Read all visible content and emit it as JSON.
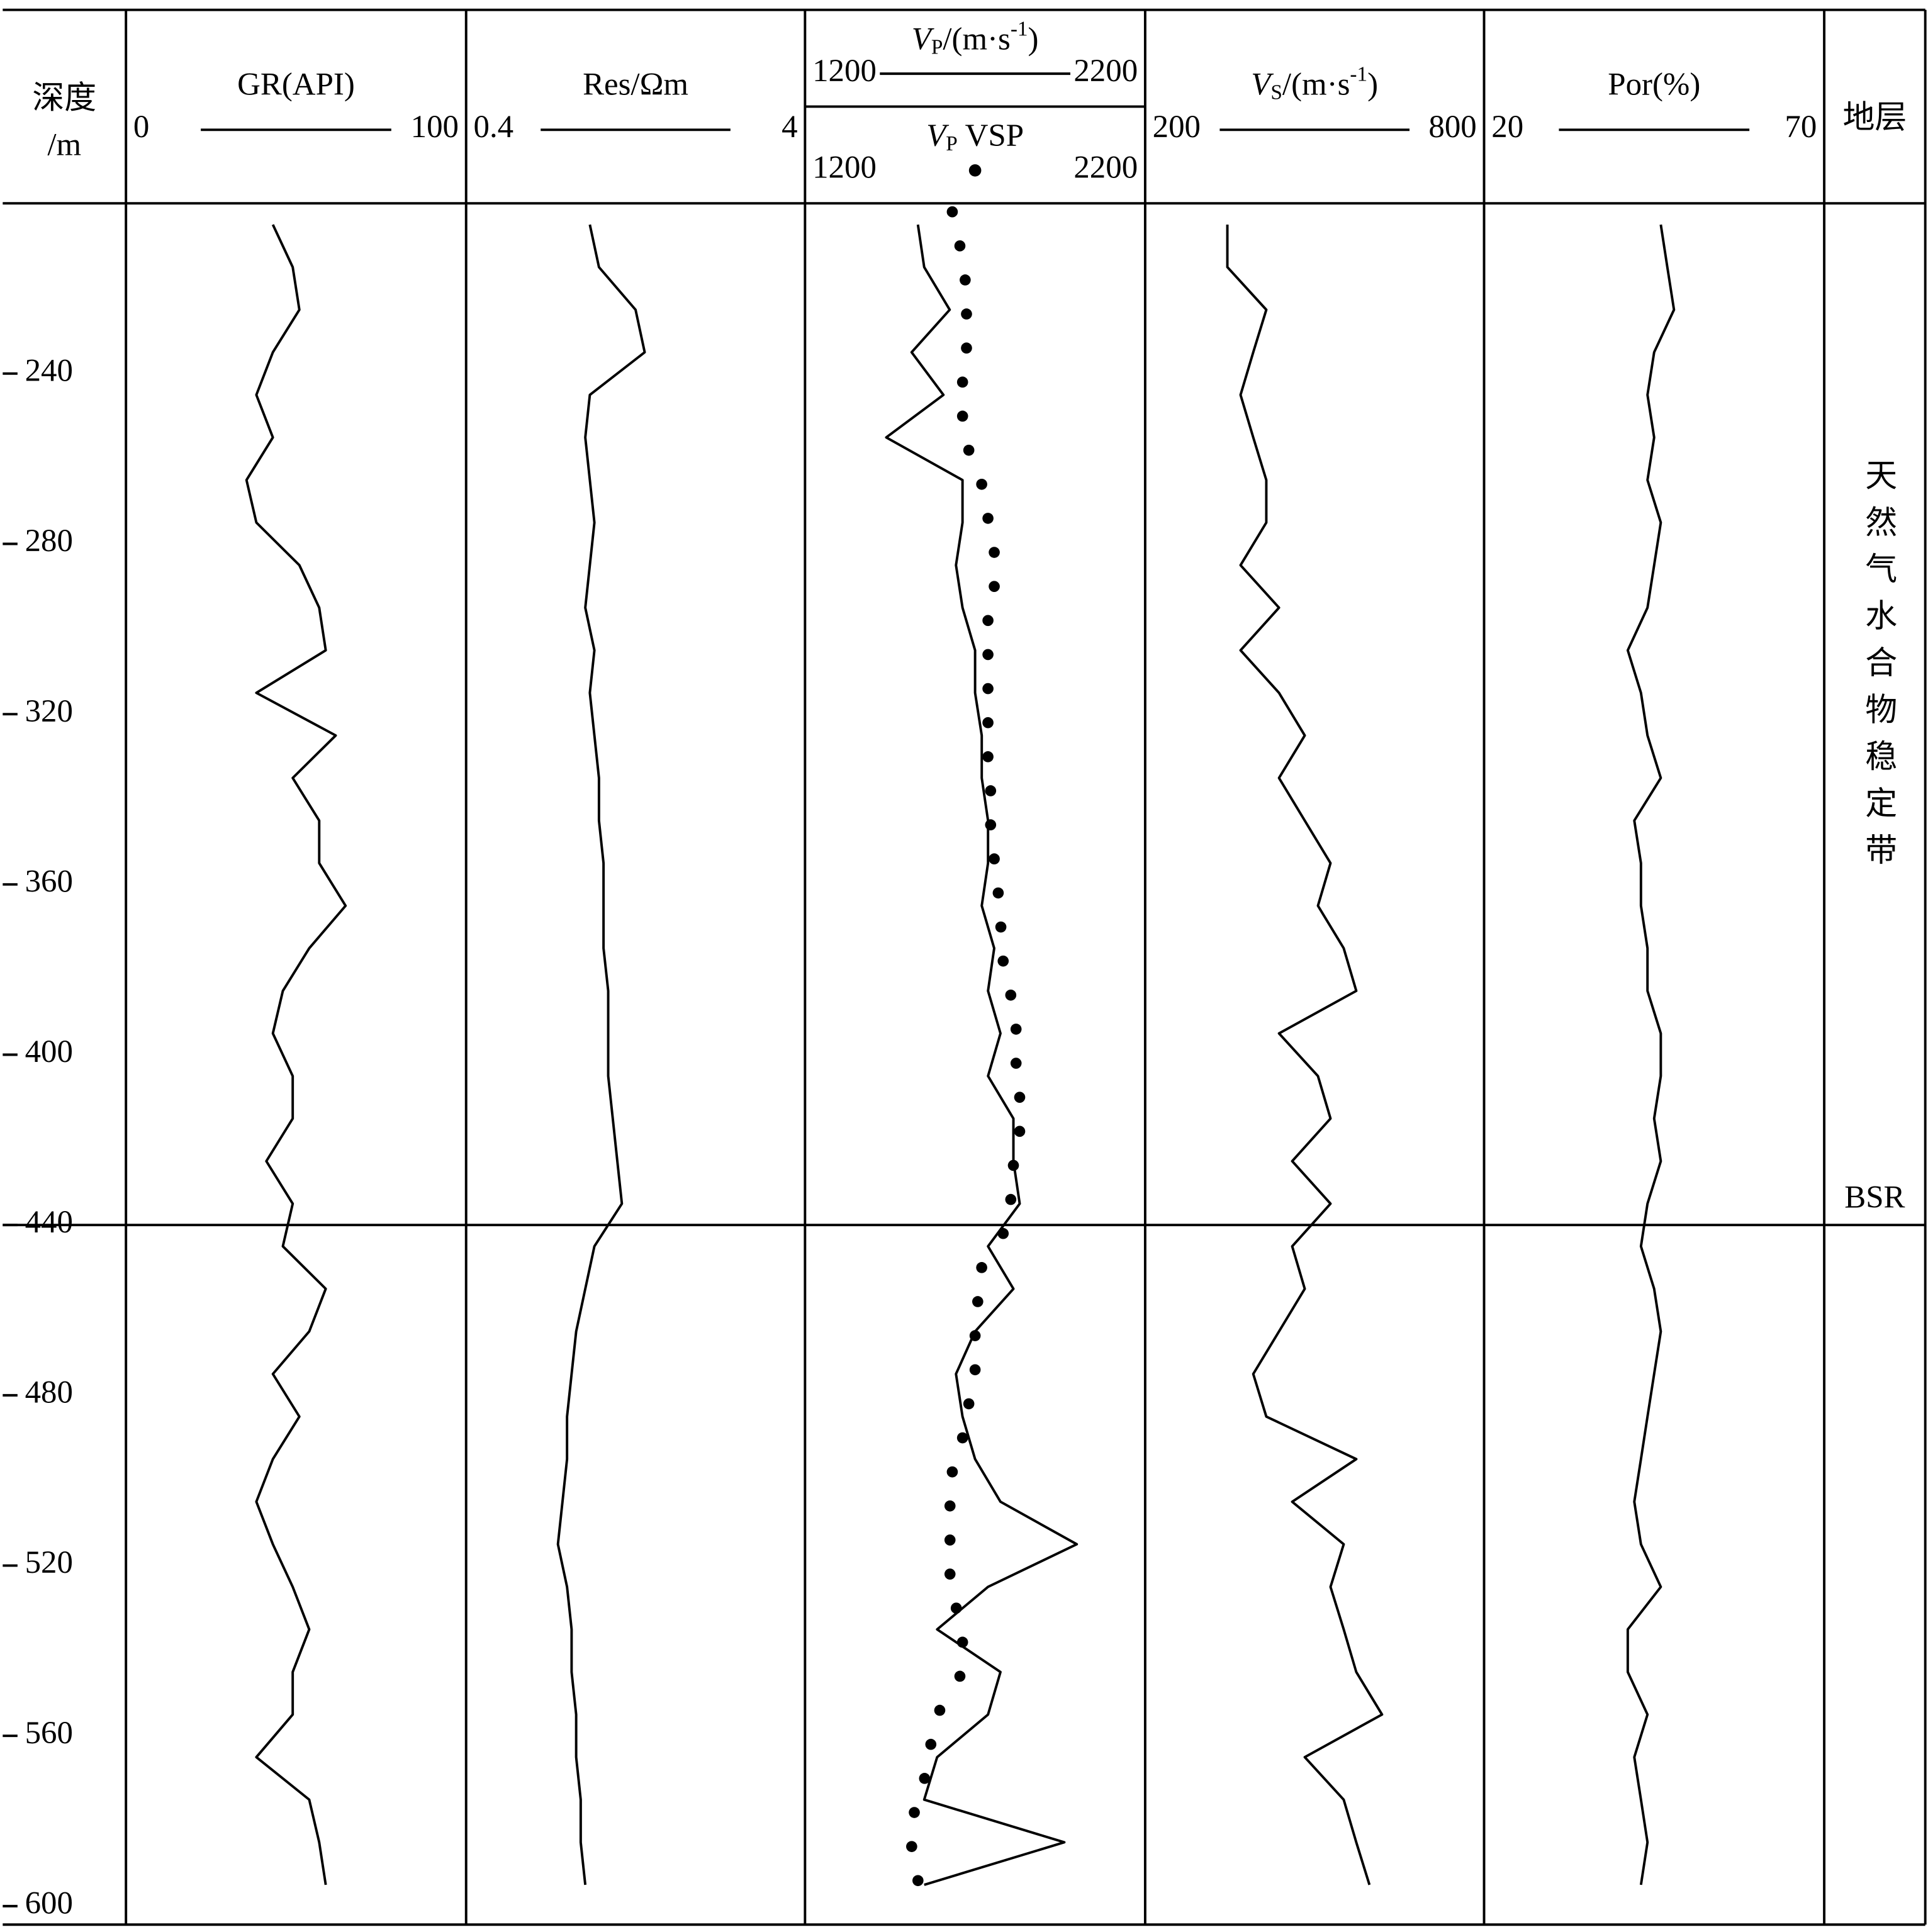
{
  "chart_data": {
    "type": "well-log",
    "depth_label": [
      "深度",
      "/m"
    ],
    "strata_label": "地层",
    "zone_label": "天然气水合物稳定带",
    "boundary": {
      "value": 440,
      "label": "BSR"
    },
    "ylim": [
      200,
      600
    ],
    "yticks": [
      240,
      280,
      320,
      360,
      400,
      440,
      480,
      520,
      560,
      600
    ],
    "depth": [
      205,
      215,
      225,
      235,
      245,
      255,
      265,
      275,
      285,
      295,
      305,
      315,
      325,
      335,
      345,
      355,
      365,
      375,
      385,
      395,
      405,
      415,
      425,
      435,
      445,
      455,
      465,
      475,
      485,
      495,
      505,
      515,
      525,
      535,
      545,
      555,
      565,
      575,
      585,
      595
    ],
    "tracks": [
      {
        "series": [
          {
            "name": "GR(API)",
            "mark": "line",
            "color": "#000000",
            "xlim": [
              0,
              100
            ],
            "xticks": [
              0,
              100
            ],
            "values": [
              43,
              49,
              51,
              43,
              38,
              43,
              35,
              38,
              51,
              57,
              59,
              38,
              62,
              49,
              57,
              57,
              65,
              54,
              46,
              43,
              49,
              49,
              41,
              49,
              46,
              59,
              54,
              43,
              51,
              43,
              38,
              43,
              49,
              54,
              49,
              49,
              38,
              54,
              57,
              59
            ]
          }
        ]
      },
      {
        "series": [
          {
            "name": "Res/Ωm",
            "mark": "line",
            "color": "#000000",
            "xlim": [
              0.4,
              4
            ],
            "xticks": [
              0.4,
              4
            ],
            "values": [
              1.7,
              1.8,
              2.2,
              2.3,
              1.7,
              1.65,
              1.7,
              1.75,
              1.7,
              1.65,
              1.75,
              1.7,
              1.75,
              1.8,
              1.8,
              1.85,
              1.85,
              1.85,
              1.9,
              1.9,
              1.9,
              1.95,
              2.0,
              2.05,
              1.75,
              1.65,
              1.55,
              1.5,
              1.45,
              1.45,
              1.4,
              1.35,
              1.45,
              1.5,
              1.5,
              1.55,
              1.55,
              1.6,
              1.6,
              1.65
            ]
          }
        ]
      },
      {
        "series": [
          {
            "name": [
              {
                "text": "V",
                "style": "italic"
              },
              {
                "text": "P",
                "style": "sub"
              },
              {
                "text": "/(m·s"
              },
              {
                "text": "-1",
                "style": "sup"
              },
              {
                "text": ")"
              }
            ],
            "mark": "line",
            "color": "#000000",
            "xlim": [
              1200,
              2200
            ],
            "xticks": [
              1200,
              2200
            ],
            "values": [
              1527,
              1546,
              1623,
              1508,
              1604,
              1431,
              1662,
              1662,
              1642,
              1662,
              1700,
              1700,
              1720,
              1720,
              1739,
              1739,
              1720,
              1758,
              1739,
              1777,
              1739,
              1816,
              1816,
              1835,
              1739,
              1816,
              1700,
              1642,
              1662,
              1700,
              1777,
              2008,
              1739,
              1585,
              1777,
              1739,
              1585,
              1546,
              1970,
              1546
            ]
          },
          {
            "name": [
              {
                "text": "V",
                "style": "italic"
              },
              {
                "text": "P",
                "style": "sub"
              },
              {
                "text": " VSP"
              }
            ],
            "mark": "dots",
            "color": "#000000",
            "xlim": [
              1200,
              2200
            ],
            "xticks": [
              1200,
              2200
            ],
            "depth": [
              202,
              210,
              218,
              226,
              234,
              242,
              250,
              258,
              266,
              274,
              282,
              290,
              298,
              306,
              314,
              322,
              330,
              338,
              346,
              354,
              362,
              370,
              378,
              386,
              394,
              402,
              410,
              418,
              426,
              434,
              442,
              450,
              458,
              466,
              474,
              482,
              490,
              498,
              506,
              514,
              522,
              530,
              538,
              546,
              554,
              562,
              570,
              578,
              586,
              594
            ],
            "values": [
              1631,
              1654,
              1670,
              1674,
              1674,
              1662,
              1662,
              1681,
              1720,
              1739,
              1758,
              1758,
              1739,
              1739,
              1739,
              1739,
              1739,
              1747,
              1747,
              1758,
              1770,
              1778,
              1785,
              1808,
              1824,
              1824,
              1835,
              1835,
              1816,
              1808,
              1785,
              1720,
              1708,
              1700,
              1700,
              1681,
              1662,
              1631,
              1624,
              1624,
              1624,
              1643,
              1662,
              1654,
              1593,
              1566,
              1547,
              1516,
              1508,
              1527
            ]
          }
        ]
      },
      {
        "series": [
          {
            "name": [
              {
                "text": "V",
                "style": "italic"
              },
              {
                "text": "S",
                "style": "sub"
              },
              {
                "text": "/(m·s"
              },
              {
                "text": "-1",
                "style": "sup"
              },
              {
                "text": ")"
              }
            ],
            "mark": "line",
            "color": "#000000",
            "xlim": [
              200,
              800
            ],
            "xticks": [
              200,
              800
            ],
            "values": [
              341,
              341,
              412,
              388,
              365,
              388,
              412,
              412,
              365,
              435,
              365,
              435,
              482,
              435,
              482,
              529,
              506,
              553,
              576,
              435,
              506,
              529,
              459,
              529,
              459,
              482,
              435,
              388,
              412,
              576,
              459,
              553,
              529,
              553,
              576,
              623,
              482,
              553,
              576,
              600
            ]
          }
        ]
      },
      {
        "series": [
          {
            "name": "Por(%)",
            "mark": "line",
            "color": "#000000",
            "xlim": [
              20,
              70
            ],
            "xticks": [
              20,
              70
            ],
            "values": [
              46,
              47,
              48,
              45,
              44,
              45,
              44,
              46,
              45,
              44,
              41,
              43,
              44,
              46,
              42,
              43,
              43,
              44,
              44,
              46,
              46,
              45,
              46,
              44,
              43,
              45,
              46,
              45,
              44,
              43,
              42,
              43,
              46,
              41,
              41,
              44,
              42,
              43,
              44,
              43
            ]
          }
        ]
      }
    ]
  }
}
